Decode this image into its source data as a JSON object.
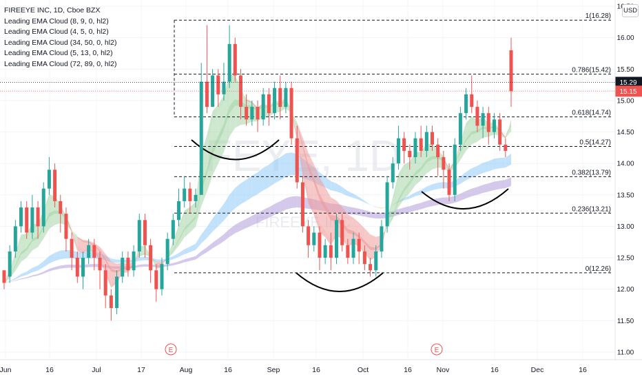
{
  "header": {
    "symbol_line": "FIREEYE INC, 1D, Cboe BZX",
    "indicators": [
      "Leading EMA Cloud (8, 9, 0, hl2)",
      "Leading EMA Cloud (4, 5, 0, hl2)",
      "Leading EMA Cloud (34, 50, 0, hl2)",
      "Leading EMA Cloud (5, 13, 0, hl2)",
      "Leading EMA Cloud (72, 89, 0, hl2)"
    ],
    "currency": "USD",
    "watermark_ticker": "FEYE, 1D",
    "watermark_name": "FIREEYE INC"
  },
  "chart_data": {
    "type": "candlestick",
    "y_range": [
      10.9,
      16.6
    ],
    "y_ticks": [
      "16.50",
      "16.00",
      "15.50",
      "15.00",
      "14.50",
      "14.00",
      "13.50",
      "13.00",
      "12.50",
      "12.00",
      "11.50",
      "11.00"
    ],
    "x_ticks": [
      "Jun",
      "16",
      "Jul",
      "17",
      "Aug",
      "16",
      "Sep",
      "16",
      "Oct",
      "16",
      "Nov",
      "16",
      "Dec",
      "16"
    ],
    "fib_levels": [
      {
        "ratio": "1",
        "value": 16.28,
        "label": "1(16.28)"
      },
      {
        "ratio": "0.786",
        "value": 15.42,
        "label": "0.786(15.42)"
      },
      {
        "ratio": "0.618",
        "value": 14.74,
        "label": "0.618(14.74)"
      },
      {
        "ratio": "0.5",
        "value": 14.27,
        "label": "0.5(14.27)"
      },
      {
        "ratio": "0.382",
        "value": 13.79,
        "label": "0.382(13.79)"
      },
      {
        "ratio": "0.236",
        "value": 13.21,
        "label": "0.236(13.21)"
      },
      {
        "ratio": "0",
        "value": 12.26,
        "label": "0(12.26)"
      }
    ],
    "price_labels": [
      {
        "value": 15.29,
        "text": "15.29",
        "color": "#131722"
      },
      {
        "value": 15.15,
        "text": "15.15",
        "color": "#ef5350"
      }
    ],
    "earnings_marker": "E",
    "colors": {
      "up": "#26a69a",
      "down": "#ef5350",
      "cloud_green": "#a5d6a7",
      "cloud_red": "#ef9a9a",
      "cloud_blue": "#90caf9",
      "cloud_purple": "#b39ddb",
      "cloud_orange": "#ffcc80"
    },
    "candles": [
      [
        12.3,
        12.1,
        12.3,
        12.0
      ],
      [
        12.2,
        12.6,
        12.7,
        12.1
      ],
      [
        12.6,
        13.0,
        13.1,
        12.5
      ],
      [
        13.0,
        13.3,
        13.4,
        12.9
      ],
      [
        13.3,
        12.9,
        13.4,
        12.8
      ],
      [
        12.9,
        13.3,
        13.5,
        12.8
      ],
      [
        13.3,
        13.0,
        13.4,
        12.8
      ],
      [
        13.0,
        13.6,
        13.7,
        12.9
      ],
      [
        13.6,
        13.9,
        14.1,
        13.5
      ],
      [
        13.9,
        13.4,
        14.0,
        13.3
      ],
      [
        13.4,
        13.2,
        13.5,
        12.9
      ],
      [
        13.2,
        12.8,
        13.3,
        12.6
      ],
      [
        12.8,
        12.5,
        12.9,
        12.3
      ],
      [
        12.5,
        12.2,
        12.6,
        12.1
      ],
      [
        12.2,
        12.5,
        12.6,
        12.0
      ],
      [
        12.5,
        12.7,
        12.8,
        12.4
      ],
      [
        12.7,
        12.5,
        12.8,
        12.3
      ],
      [
        12.5,
        12.3,
        12.6,
        12.0
      ],
      [
        12.3,
        11.9,
        12.4,
        11.7
      ],
      [
        11.9,
        11.7,
        12.0,
        11.5
      ],
      [
        11.7,
        12.2,
        12.3,
        11.6
      ],
      [
        12.2,
        12.5,
        12.6,
        12.1
      ],
      [
        12.5,
        12.3,
        12.6,
        12.2
      ],
      [
        12.3,
        12.6,
        12.7,
        12.2
      ],
      [
        12.6,
        13.1,
        13.2,
        12.5
      ],
      [
        13.1,
        12.7,
        13.2,
        12.5
      ],
      [
        12.7,
        12.3,
        12.8,
        12.1
      ],
      [
        12.3,
        12.0,
        12.4,
        11.8
      ],
      [
        12.0,
        12.4,
        12.5,
        11.9
      ],
      [
        12.4,
        12.8,
        12.9,
        12.3
      ],
      [
        12.8,
        13.1,
        13.2,
        12.7
      ],
      [
        13.1,
        13.4,
        13.6,
        13.0
      ],
      [
        13.4,
        13.6,
        13.8,
        13.3
      ],
      [
        13.6,
        13.4,
        13.7,
        13.2
      ],
      [
        13.4,
        13.5,
        13.6,
        13.3
      ],
      [
        13.5,
        15.3,
        15.6,
        14.7
      ],
      [
        15.3,
        14.9,
        16.2,
        14.8
      ],
      [
        14.9,
        15.4,
        15.5,
        14.9
      ],
      [
        15.4,
        15.1,
        15.5,
        14.9
      ],
      [
        15.1,
        15.3,
        15.6,
        15.0
      ],
      [
        15.3,
        15.9,
        16.2,
        15.2
      ],
      [
        15.9,
        15.4,
        16.0,
        15.3
      ],
      [
        15.4,
        14.9,
        15.5,
        14.7
      ],
      [
        14.9,
        14.7,
        15.1,
        14.6
      ],
      [
        14.7,
        14.9,
        15.0,
        14.6
      ],
      [
        14.9,
        14.7,
        15.0,
        14.5
      ],
      [
        14.7,
        15.1,
        15.2,
        14.6
      ],
      [
        15.1,
        14.8,
        15.2,
        14.6
      ],
      [
        14.8,
        15.2,
        15.3,
        14.7
      ],
      [
        15.2,
        14.9,
        15.4,
        14.7
      ],
      [
        14.9,
        15.2,
        15.3,
        14.8
      ],
      [
        15.2,
        14.4,
        15.3,
        14.3
      ],
      [
        14.4,
        13.7,
        14.6,
        13.6
      ],
      [
        13.7,
        13.0,
        13.8,
        12.9
      ],
      [
        13.0,
        12.7,
        13.1,
        12.5
      ],
      [
        12.7,
        12.9,
        13.0,
        12.6
      ],
      [
        12.9,
        12.5,
        13.0,
        12.3
      ],
      [
        12.5,
        12.7,
        12.8,
        12.4
      ],
      [
        12.7,
        12.5,
        12.9,
        12.3
      ],
      [
        12.5,
        13.1,
        13.2,
        12.4
      ],
      [
        13.1,
        12.7,
        13.2,
        12.6
      ],
      [
        12.7,
        12.5,
        12.8,
        12.4
      ],
      [
        12.5,
        12.8,
        12.9,
        12.4
      ],
      [
        12.8,
        12.6,
        12.9,
        12.4
      ],
      [
        12.6,
        12.4,
        12.7,
        12.3
      ],
      [
        12.4,
        12.3,
        12.5,
        12.2
      ],
      [
        12.3,
        12.6,
        12.7,
        12.2
      ],
      [
        12.6,
        13.0,
        13.1,
        12.5
      ],
      [
        13.0,
        13.7,
        13.8,
        12.9
      ],
      [
        13.7,
        14.0,
        14.1,
        13.6
      ],
      [
        14.0,
        14.4,
        14.6,
        13.9
      ],
      [
        14.4,
        14.2,
        14.5,
        14.0
      ],
      [
        14.2,
        14.1,
        14.3,
        13.9
      ],
      [
        14.1,
        14.4,
        14.5,
        14.0
      ],
      [
        14.4,
        14.2,
        14.6,
        14.1
      ],
      [
        14.2,
        14.5,
        14.6,
        14.1
      ],
      [
        14.5,
        14.3,
        14.6,
        14.2
      ],
      [
        14.3,
        14.1,
        14.4,
        13.8
      ],
      [
        14.1,
        13.9,
        14.2,
        13.6
      ],
      [
        13.9,
        13.5,
        14.0,
        13.4
      ],
      [
        13.5,
        14.3,
        14.4,
        13.4
      ],
      [
        14.3,
        14.8,
        14.9,
        14.2
      ],
      [
        14.8,
        15.1,
        15.2,
        14.7
      ],
      [
        15.1,
        14.9,
        15.4,
        14.8
      ],
      [
        14.9,
        14.6,
        15.0,
        14.5
      ],
      [
        14.6,
        14.8,
        14.9,
        14.4
      ],
      [
        14.8,
        14.5,
        14.9,
        14.3
      ],
      [
        14.5,
        14.7,
        14.8,
        14.4
      ],
      [
        14.7,
        14.3,
        14.8,
        14.2
      ],
      [
        14.3,
        14.2,
        14.4,
        14.1
      ],
      [
        15.8,
        15.15,
        16.0,
        14.9
      ]
    ],
    "title": "",
    "xlabel": "",
    "ylabel": ""
  }
}
